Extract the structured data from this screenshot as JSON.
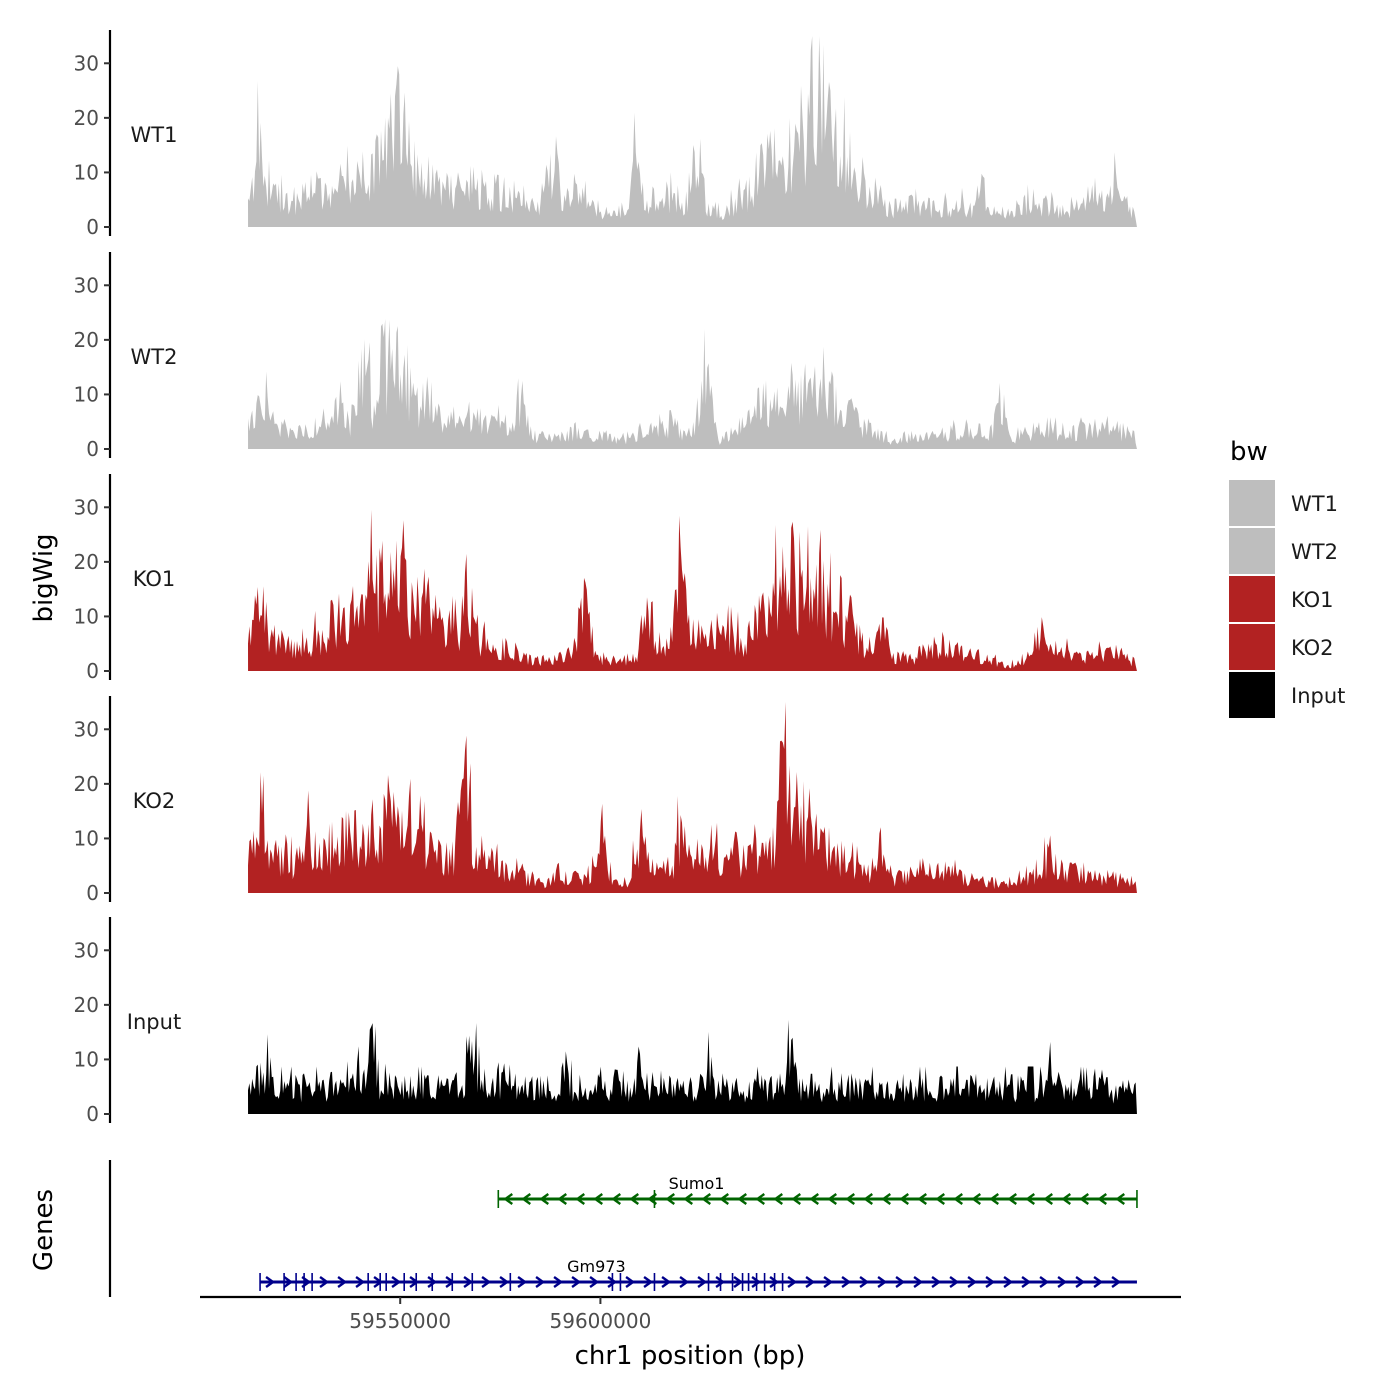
{
  "chart_data": {
    "type": "area",
    "ylabel": "bigWig",
    "xlabel": "chr1 position (bp)",
    "genes_label": "Genes",
    "chromosome": "chr1",
    "xlim": [
      59500000,
      59745000
    ],
    "x_ticks": [
      59550000,
      59600000
    ],
    "x_tick_labels": [
      "59550000",
      "59600000"
    ],
    "ylim": [
      0,
      35
    ],
    "y_ticks": [
      0,
      10,
      20,
      30
    ],
    "y_tick_labels": [
      "0",
      "10",
      "20",
      "30"
    ],
    "legend": {
      "title": "bw",
      "entries": [
        {
          "label": "WT1",
          "color": "#bebebe"
        },
        {
          "label": "WT2",
          "color": "#bebebe"
        },
        {
          "label": "KO1",
          "color": "#b22222"
        },
        {
          "label": "KO2",
          "color": "#b22222"
        },
        {
          "label": "Input",
          "color": "#000000"
        }
      ]
    },
    "data_range": [
      59512000,
      59734000
    ],
    "series": [
      {
        "name": "WT1",
        "color": "#bebebe",
        "x": [
          59512000,
          59518000,
          59524000,
          59530000,
          59536000,
          59542000,
          59546000,
          59550000,
          59554000,
          59560000,
          59566000,
          59572000,
          59578000,
          59582000,
          59586000,
          59590000,
          59594000,
          59600000,
          59606000,
          59612000,
          59618000,
          59624000,
          59630000,
          59636000,
          59642000,
          59648000,
          59654000,
          59660000,
          59666000,
          59672000,
          59678000,
          59684000,
          59690000,
          59696000,
          59702000,
          59708000,
          59714000,
          59720000,
          59726000,
          59734000
        ],
        "values": [
          8,
          7,
          6,
          9,
          10,
          12,
          16,
          20,
          13,
          9,
          8,
          7,
          6,
          5,
          3,
          5,
          7,
          4,
          3,
          6,
          7,
          4,
          3,
          7,
          12,
          14,
          25,
          18,
          8,
          4,
          5,
          4,
          5,
          4,
          3,
          6,
          4,
          5,
          6,
          3
        ],
        "peaks": [
          [
            59515000,
            21
          ],
          [
            59548000,
            24
          ],
          [
            59550000,
            32
          ],
          [
            59588000,
            18
          ],
          [
            59609000,
            15
          ],
          [
            59624000,
            17
          ],
          [
            59654000,
            34
          ],
          [
            59658000,
            27
          ],
          [
            59695000,
            11
          ],
          [
            59723000,
            11
          ],
          [
            59729000,
            10
          ]
        ]
      },
      {
        "name": "WT2",
        "color": "#bebebe",
        "x": [
          59512000,
          59518000,
          59524000,
          59530000,
          59536000,
          59542000,
          59546000,
          59550000,
          59554000,
          59560000,
          59566000,
          59572000,
          59578000,
          59582000,
          59586000,
          59590000,
          59594000,
          59600000,
          59606000,
          59612000,
          59618000,
          59624000,
          59630000,
          59636000,
          59642000,
          59648000,
          59654000,
          59660000,
          59666000,
          59672000,
          59678000,
          59684000,
          59690000,
          59696000,
          59702000,
          59708000,
          59714000,
          59720000,
          59726000,
          59734000
        ],
        "values": [
          6,
          5,
          4,
          5,
          6,
          8,
          11,
          15,
          11,
          7,
          6,
          6,
          5,
          4,
          2,
          3,
          4,
          3,
          2,
          4,
          5,
          3,
          2,
          6,
          9,
          11,
          14,
          10,
          5,
          2,
          3,
          3,
          4,
          3,
          2,
          4,
          4,
          4,
          5,
          2
        ],
        "peaks": [
          [
            59516000,
            15
          ],
          [
            59535000,
            13
          ],
          [
            59541000,
            19
          ],
          [
            59546000,
            22
          ],
          [
            59549000,
            23
          ],
          [
            59580000,
            10
          ],
          [
            59626000,
            16
          ],
          [
            59650000,
            13
          ],
          [
            59656000,
            18
          ],
          [
            59700000,
            10
          ],
          [
            59728000,
            8
          ]
        ]
      },
      {
        "name": "KO1",
        "color": "#b22222",
        "x": [
          59512000,
          59518000,
          59524000,
          59530000,
          59536000,
          59542000,
          59546000,
          59550000,
          59554000,
          59560000,
          59566000,
          59572000,
          59578000,
          59582000,
          59586000,
          59590000,
          59594000,
          59600000,
          59606000,
          59612000,
          59618000,
          59624000,
          59630000,
          59636000,
          59642000,
          59648000,
          59654000,
          59660000,
          59666000,
          59672000,
          59678000,
          59684000,
          59690000,
          59696000,
          59702000,
          59708000,
          59714000,
          59720000,
          59726000,
          59734000
        ],
        "values": [
          8,
          7,
          6,
          8,
          10,
          12,
          17,
          19,
          15,
          11,
          8,
          6,
          5,
          3,
          2,
          3,
          5,
          3,
          2,
          4,
          6,
          8,
          9,
          7,
          14,
          17,
          19,
          12,
          6,
          3,
          3,
          6,
          5,
          3,
          1,
          4,
          5,
          3,
          4,
          2
        ],
        "peaks": [
          [
            59515000,
            15
          ],
          [
            59535000,
            17
          ],
          [
            59542000,
            23
          ],
          [
            59550000,
            28
          ],
          [
            59557000,
            20
          ],
          [
            59567000,
            19
          ],
          [
            59596000,
            17
          ],
          [
            59612000,
            15
          ],
          [
            59620000,
            25
          ],
          [
            59643000,
            22
          ],
          [
            59648000,
            23
          ],
          [
            59670000,
            11
          ],
          [
            59710000,
            10
          ]
        ]
      },
      {
        "name": "KO2",
        "color": "#b22222",
        "x": [
          59512000,
          59518000,
          59524000,
          59530000,
          59536000,
          59542000,
          59546000,
          59550000,
          59554000,
          59560000,
          59566000,
          59572000,
          59578000,
          59582000,
          59586000,
          59590000,
          59594000,
          59600000,
          59606000,
          59612000,
          59618000,
          59624000,
          59630000,
          59636000,
          59642000,
          59648000,
          59654000,
          59660000,
          59666000,
          59672000,
          59678000,
          59684000,
          59690000,
          59696000,
          59702000,
          59708000,
          59714000,
          59720000,
          59726000,
          59734000
        ],
        "values": [
          9,
          8,
          7,
          8,
          10,
          11,
          14,
          17,
          13,
          9,
          8,
          7,
          5,
          3,
          2,
          4,
          4,
          3,
          2,
          4,
          6,
          8,
          9,
          7,
          11,
          16,
          12,
          8,
          5,
          3,
          4,
          5,
          4,
          2,
          2,
          4,
          6,
          4,
          3,
          2
        ],
        "peaks": [
          [
            59515000,
            19
          ],
          [
            59527000,
            15
          ],
          [
            59535000,
            18
          ],
          [
            59547000,
            24
          ],
          [
            59551000,
            22
          ],
          [
            59566000,
            25
          ],
          [
            59600000,
            13
          ],
          [
            59610000,
            14
          ],
          [
            59620000,
            14
          ],
          [
            59646000,
            28
          ],
          [
            59653000,
            19
          ],
          [
            59670000,
            12
          ],
          [
            59712000,
            9
          ]
        ]
      },
      {
        "name": "Input",
        "color": "#000000",
        "x": [
          59512000,
          59520000,
          59530000,
          59540000,
          59550000,
          59560000,
          59570000,
          59580000,
          59590000,
          59600000,
          59610000,
          59620000,
          59630000,
          59640000,
          59650000,
          59660000,
          59670000,
          59680000,
          59690000,
          59700000,
          59710000,
          59720000,
          59734000
        ],
        "values": [
          6,
          6,
          6,
          7,
          6,
          6,
          7,
          6,
          6,
          6,
          5,
          6,
          6,
          6,
          6,
          6,
          6,
          6,
          6,
          6,
          6,
          6,
          5
        ],
        "peaks": [
          [
            59516000,
            12
          ],
          [
            59539000,
            12
          ],
          [
            59543000,
            15
          ],
          [
            59568000,
            14
          ],
          [
            59591000,
            12
          ],
          [
            59610000,
            13
          ],
          [
            59627000,
            13
          ],
          [
            59648000,
            16
          ],
          [
            59713000,
            14
          ]
        ]
      }
    ],
    "genes": [
      {
        "name": "Sumo1",
        "strand": "-",
        "color": "#006400",
        "start": 59574500,
        "end": 59734000,
        "label_x": 59624000,
        "exons": [
          59574500,
          59613500,
          59734000
        ]
      },
      {
        "name": "Gm973",
        "strand": "+",
        "color": "#00008b",
        "start": 59515000,
        "end": 59734000,
        "label_x": 59599000,
        "exons": [
          59515000,
          59521000,
          59524000,
          59526000,
          59528000,
          59542000,
          59545000,
          59546500,
          59551000,
          59554000,
          59558000,
          59563000,
          59568000,
          59577500,
          59603000,
          59605000,
          59613500,
          59627000,
          59630000,
          59633000,
          59635500,
          59637000,
          59639000,
          59641000,
          59643500,
          59645500
        ]
      }
    ]
  }
}
